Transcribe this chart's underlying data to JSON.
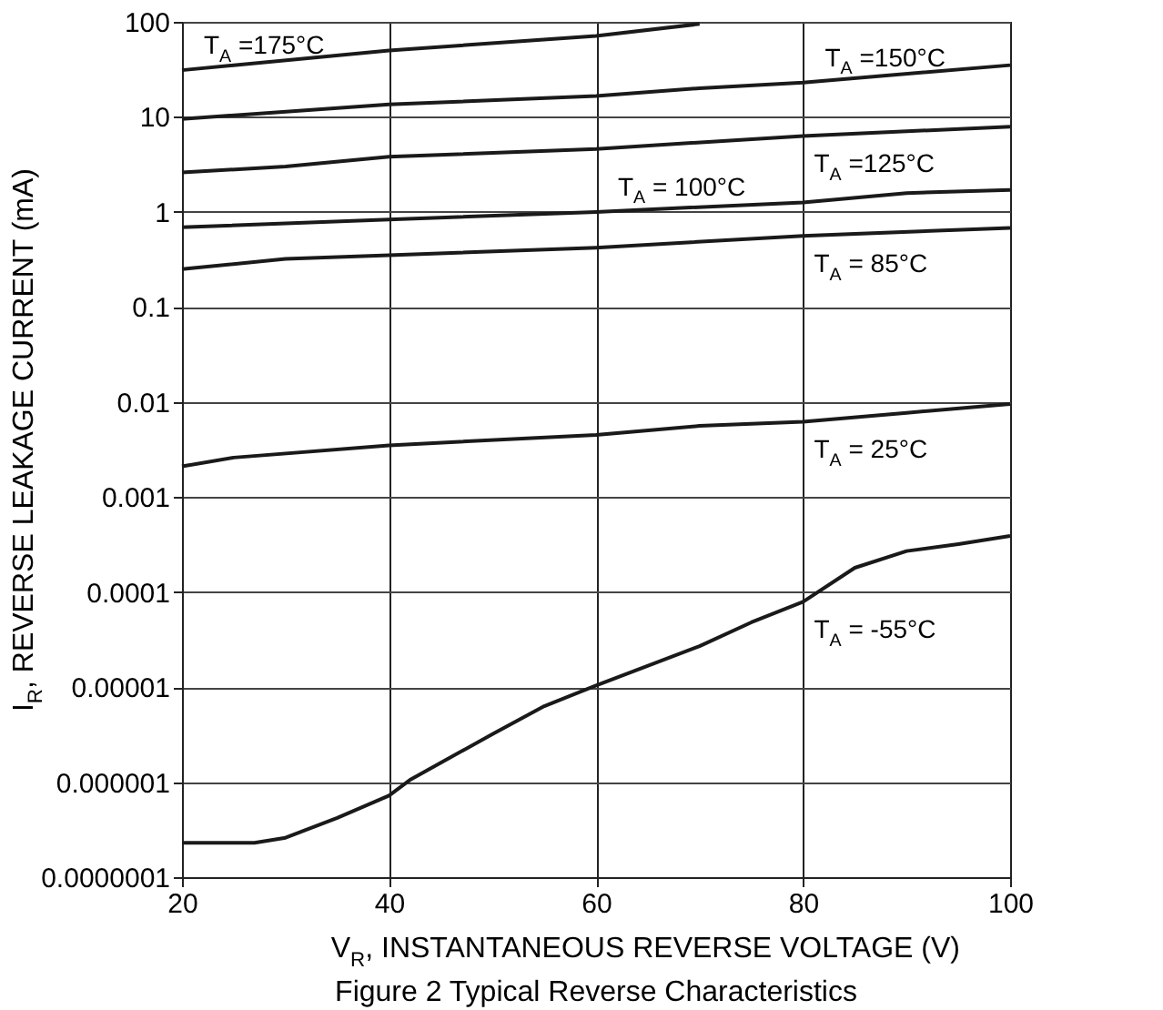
{
  "chart_data": {
    "type": "line",
    "title": "Figure 2 Typical Reverse Characteristics",
    "xlabel": "V$_{R}$, INSTANTANEOUS REVERSE VOLTAGE (V)",
    "ylabel": "I$_{R}$, REVERSE LEAKAGE CURRENT (mA)",
    "xlim": [
      20,
      100
    ],
    "xticks": [
      20,
      40,
      60,
      80,
      100
    ],
    "ylim": [
      1e-07,
      100
    ],
    "yticks": [
      100,
      10,
      1,
      0.1,
      0.01,
      0.001,
      0.0001,
      {
        "value": 1e-05,
        "label": "0.00001"
      },
      {
        "value": 1e-06,
        "label": "0.000001"
      },
      {
        "value": 1e-07,
        "label": "0.0000001"
      }
    ],
    "log": "y",
    "grid": true,
    "legend": false,
    "marker": "none",
    "line_style": "solid",
    "series": [
      {
        "name": "T$_{A}$ =175°C",
        "color": "#1a1a1a",
        "x": [
          20,
          40,
          60,
          70
        ],
        "values": [
          31,
          50,
          71,
          95
        ]
      },
      {
        "name": "T$_{A}$ =150°C",
        "color": "#1a1a1a",
        "x": [
          20,
          40,
          60,
          70,
          80,
          100
        ],
        "values": [
          9.5,
          13.5,
          16.6,
          20,
          23,
          35
        ]
      },
      {
        "name": "T$_{A}$ =125°C",
        "color": "#1a1a1a",
        "x": [
          20,
          30,
          40,
          60,
          80,
          100
        ],
        "values": [
          2.6,
          3.0,
          3.8,
          4.6,
          6.3,
          7.9
        ]
      },
      {
        "name": "T$_{A}$ = 100°C",
        "color": "#1a1a1a",
        "x": [
          20,
          40,
          60,
          80,
          90,
          100
        ],
        "values": [
          0.69,
          0.83,
          1.0,
          1.26,
          1.58,
          1.7
        ]
      },
      {
        "name": "T$_{A}$ = 85°C",
        "color": "#1a1a1a",
        "x": [
          20,
          30,
          40,
          60,
          80,
          100
        ],
        "values": [
          0.25,
          0.32,
          0.35,
          0.42,
          0.56,
          0.68
        ]
      },
      {
        "name": "T$_{A}$ = 25°C",
        "color": "#1a1a1a",
        "x": [
          20,
          25,
          40,
          60,
          70,
          80,
          90,
          100
        ],
        "values": [
          0.0021,
          0.0026,
          0.0035,
          0.0045,
          0.0056,
          0.0062,
          0.0077,
          0.0095
        ]
      },
      {
        "name": "T$_{A}$ = -55°C",
        "color": "#1a1a1a",
        "x": [
          20,
          27,
          30,
          35,
          40,
          42,
          45,
          50,
          55,
          60,
          70,
          75,
          80,
          85,
          90,
          95,
          100
        ],
        "values": [
          2.3e-07,
          2.3e-07,
          2.6e-07,
          4.2e-07,
          7.2e-07,
          1.05e-06,
          1.6e-06,
          3.2e-06,
          6.3e-06,
          1.04e-05,
          2.7e-05,
          4.8e-05,
          7.9e-05,
          0.00018,
          0.00027,
          0.00032,
          0.00039
        ]
      }
    ]
  }
}
